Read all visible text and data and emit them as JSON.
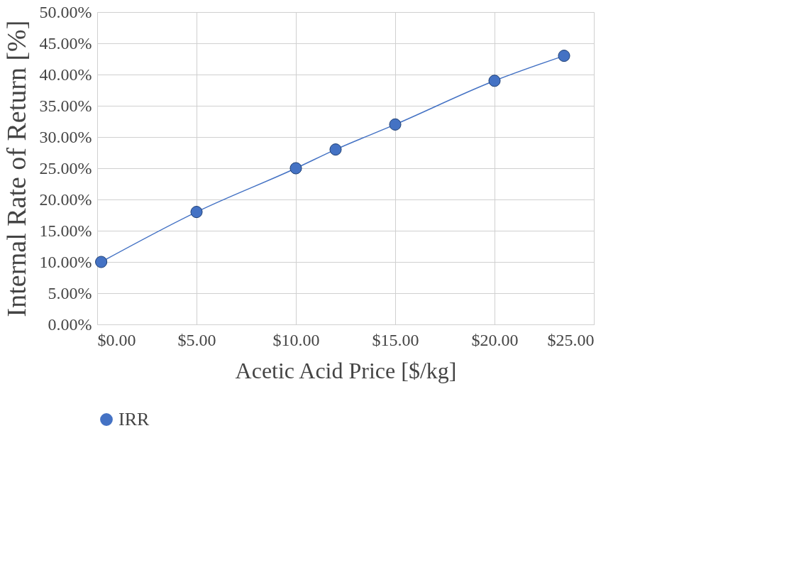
{
  "chart_data": {
    "type": "line",
    "xlabel": "Acetic Acid Price [$/kg]",
    "ylabel": "Internal Rate of Return [%]",
    "x": [
      0.2,
      5,
      10,
      12,
      15,
      20,
      23.5
    ],
    "series": [
      {
        "name": "IRR",
        "color": "#4472c4",
        "values": [
          10,
          18,
          25,
          28,
          32,
          39,
          43
        ]
      }
    ],
    "xlim": [
      0,
      25
    ],
    "xticks": [
      {
        "value": 0,
        "label": "$0.00"
      },
      {
        "value": 5,
        "label": "$5.00"
      },
      {
        "value": 10,
        "label": "$10.00"
      },
      {
        "value": 15,
        "label": "$15.00"
      },
      {
        "value": 20,
        "label": "$20.00"
      },
      {
        "value": 25,
        "label": "$25.00"
      }
    ],
    "ylim": [
      0,
      50
    ],
    "yticks": [
      {
        "value": 0,
        "label": "0.00%"
      },
      {
        "value": 5,
        "label": "5.00%"
      },
      {
        "value": 10,
        "label": "10.00%"
      },
      {
        "value": 15,
        "label": "15.00%"
      },
      {
        "value": 20,
        "label": "20.00%"
      },
      {
        "value": 25,
        "label": "25.00%"
      },
      {
        "value": 30,
        "label": "30.00%"
      },
      {
        "value": 35,
        "label": "35.00%"
      },
      {
        "value": 40,
        "label": "40.00%"
      },
      {
        "value": 45,
        "label": "45.00%"
      },
      {
        "value": 50,
        "label": "50.00%"
      }
    ],
    "grid": true,
    "legend": "bottom",
    "marker": "circle",
    "line_style": "solid"
  }
}
